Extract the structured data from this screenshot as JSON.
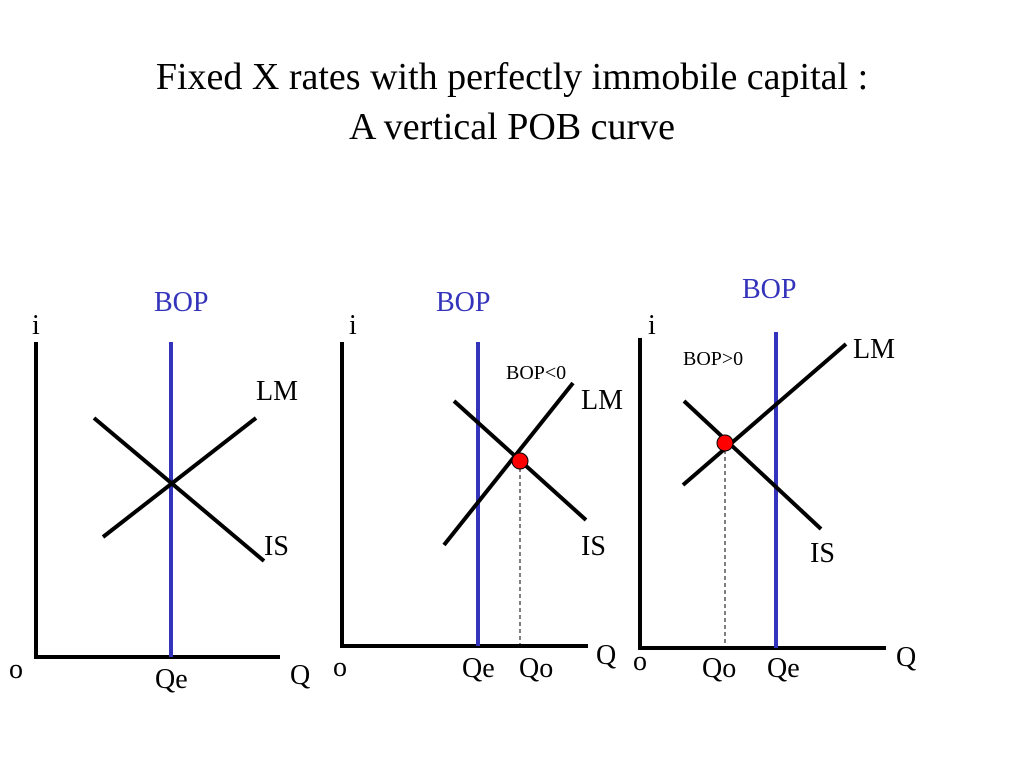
{
  "slide": {
    "title_line1": "Fixed X rates with perfectly immobile capital :",
    "title_line2": "A vertical POB curve"
  },
  "colors": {
    "bop_line": "#3333bb",
    "bop_label": "#3333bb",
    "curves": "#000000",
    "equilibrium_dot": "#ff0000"
  },
  "panels": [
    {
      "y_axis_label": "i",
      "x_axis_label": "Q",
      "origin_label": "o",
      "bop_label": "BOP",
      "lm_label": "LM",
      "is_label": "IS",
      "qe_label": "Qe"
    },
    {
      "y_axis_label": "i",
      "x_axis_label": "Q",
      "origin_label": "o",
      "bop_label": "BOP",
      "bop_state_label": "BOP<0",
      "lm_label": "LM",
      "is_label": "IS",
      "qe_label": "Qe",
      "qo_label": "Qo"
    },
    {
      "y_axis_label": "i",
      "x_axis_label": "Q",
      "origin_label": "o",
      "bop_label": "BOP",
      "bop_state_label": "BOP>0",
      "lm_label": "LM",
      "is_label": "IS",
      "qe_label": "Qe",
      "qo_label": "Qo"
    }
  ]
}
